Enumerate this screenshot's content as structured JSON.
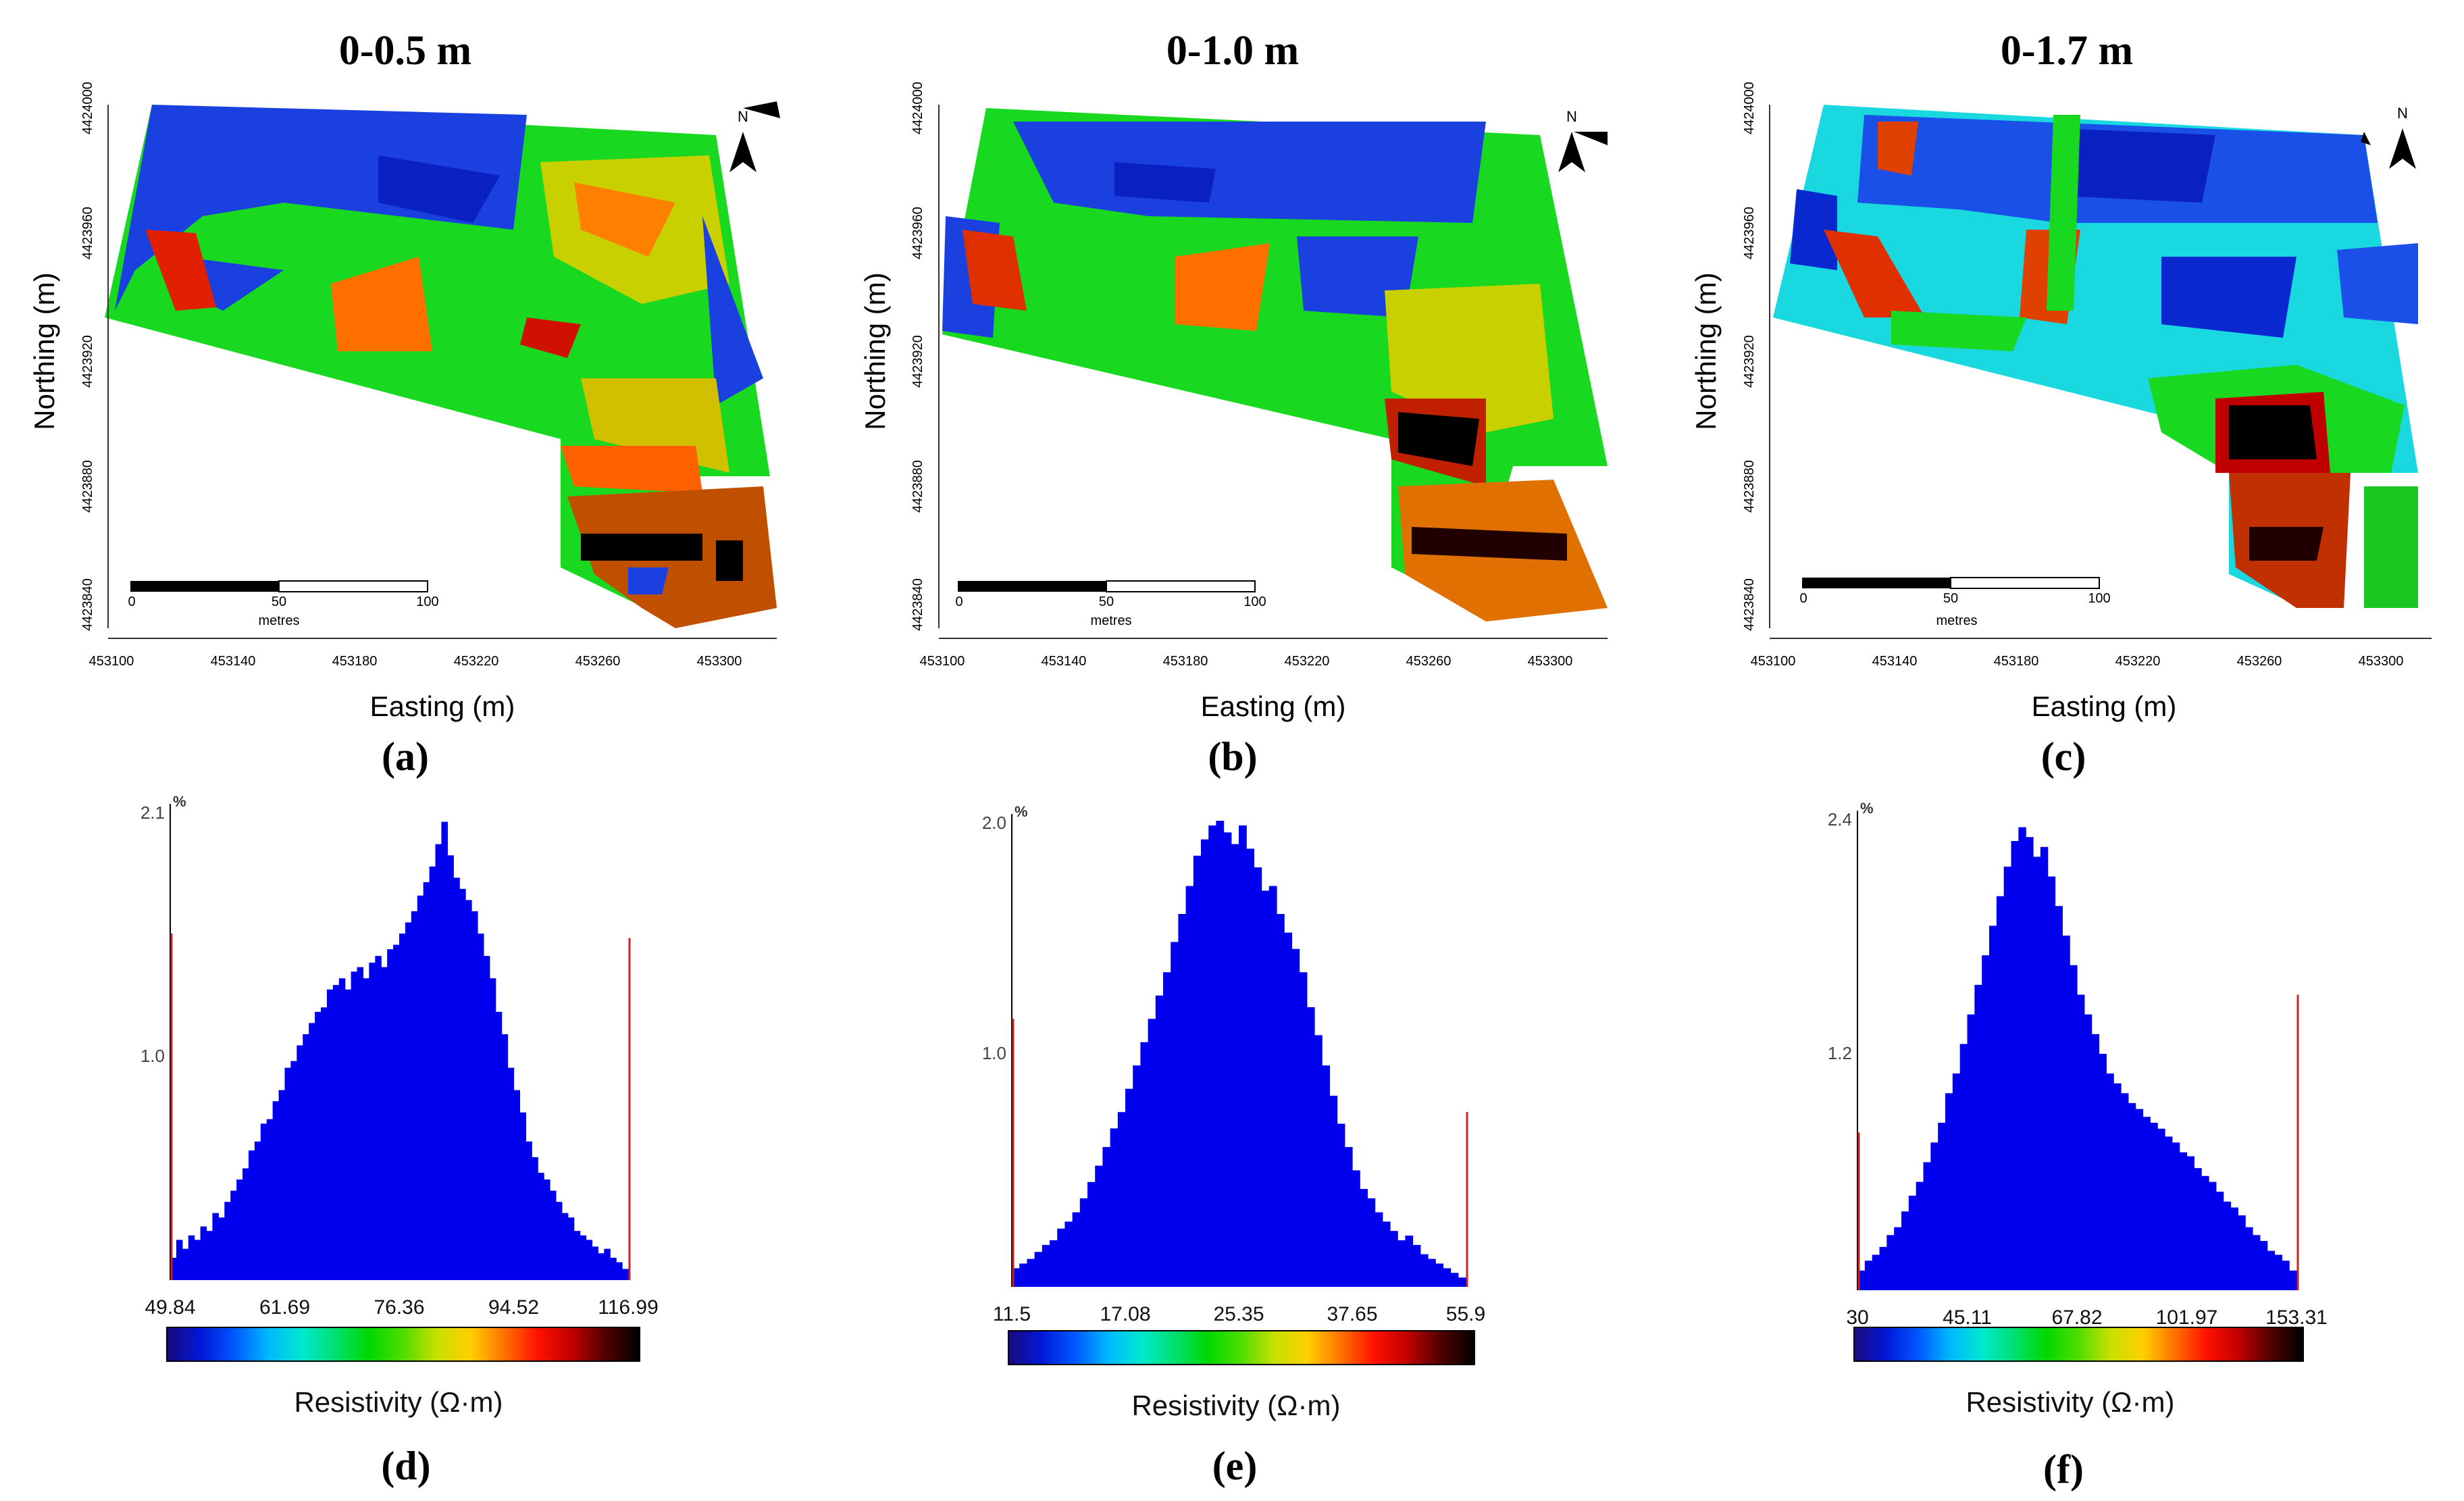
{
  "figure": {
    "background": "#ffffff",
    "colorbar_colors": [
      "#1a0a7a",
      "#0018d8",
      "#0058ff",
      "#00b8ff",
      "#00e8d0",
      "#00e070",
      "#00d800",
      "#50dd00",
      "#c8e000",
      "#ffd000",
      "#ff7000",
      "#ff1000",
      "#c00000",
      "#500000",
      "#000000"
    ]
  },
  "panels": [
    {
      "title": "0-0.5 m",
      "label": "(a)",
      "xlabel": "Easting (m)",
      "ylabel": "Northing (m)",
      "xticks": [
        "453100",
        "453140",
        "453180",
        "453220",
        "453260",
        "453300"
      ],
      "yticks": [
        "4424000",
        "4423960",
        "4423920",
        "4423880",
        "4423840"
      ],
      "scalebar": {
        "ticks": [
          "0",
          "50",
          "100"
        ],
        "unit": "metres"
      },
      "north": "N",
      "icon": "north-arrow-icon"
    },
    {
      "title": "0-1.0 m",
      "label": "(b)",
      "xlabel": "Easting (m)",
      "ylabel": "Northing (m)",
      "xticks": [
        "453100",
        "453140",
        "453180",
        "453220",
        "453260",
        "453300"
      ],
      "yticks": [
        "4424000",
        "4423960",
        "4423920",
        "4423880",
        "4423840"
      ],
      "scalebar": {
        "ticks": [
          "0",
          "50",
          "100"
        ],
        "unit": "metres"
      },
      "north": "N",
      "icon": "north-arrow-icon"
    },
    {
      "title": "0-1.7 m",
      "label": "(c)",
      "xlabel": "Easting (m)",
      "ylabel": "Northing (m)",
      "xticks": [
        "453100",
        "453140",
        "453180",
        "453220",
        "453260",
        "453300"
      ],
      "yticks": [
        "4424000",
        "4423960",
        "4423920",
        "4423880",
        "4423840"
      ],
      "scalebar": {
        "ticks": [
          "0",
          "50",
          "100"
        ],
        "unit": "metres"
      },
      "north": "N",
      "icon": "north-arrow-icon"
    }
  ],
  "chart_data": [
    {
      "type": "bar",
      "label": "(d)",
      "xlabel": "Resistivity (Ω·m)",
      "ylabel": "%",
      "xrange": [
        49.84,
        116.99
      ],
      "x_tick_labels": [
        "49.84",
        "61.69",
        "76.36",
        "94.52",
        "116.99"
      ],
      "y_tick_labels": [
        "1.0",
        "2.1"
      ],
      "ylim": [
        0,
        2.1
      ],
      "cutoff_markers": [
        1.55,
        1.53
      ],
      "values": [
        0.1,
        0.18,
        0.14,
        0.2,
        0.18,
        0.24,
        0.22,
        0.3,
        0.28,
        0.35,
        0.4,
        0.45,
        0.5,
        0.58,
        0.62,
        0.7,
        0.72,
        0.8,
        0.85,
        0.95,
        0.98,
        1.05,
        1.1,
        1.15,
        1.2,
        1.22,
        1.3,
        1.32,
        1.35,
        1.3,
        1.38,
        1.4,
        1.35,
        1.42,
        1.45,
        1.4,
        1.48,
        1.5,
        1.55,
        1.6,
        1.65,
        1.72,
        1.78,
        1.85,
        1.95,
        2.05,
        1.9,
        1.8,
        1.75,
        1.7,
        1.65,
        1.55,
        1.45,
        1.35,
        1.2,
        1.1,
        0.95,
        0.85,
        0.75,
        0.62,
        0.55,
        0.48,
        0.45,
        0.4,
        0.35,
        0.3,
        0.28,
        0.22,
        0.2,
        0.18,
        0.15,
        0.12,
        0.14,
        0.1,
        0.08,
        0.05
      ]
    },
    {
      "type": "bar",
      "label": "(e)",
      "xlabel": "Resistivity (Ω·m)",
      "ylabel": "%",
      "xrange": [
        11.5,
        55.9
      ],
      "x_tick_labels": [
        "11.5",
        "17.08",
        "25.35",
        "37.65",
        "55.9"
      ],
      "y_tick_labels": [
        "1.0",
        "2.0"
      ],
      "ylim": [
        0,
        2.0
      ],
      "cutoff_markers": [
        1.15,
        0.75
      ],
      "values": [
        0.08,
        0.1,
        0.12,
        0.15,
        0.18,
        0.2,
        0.25,
        0.28,
        0.32,
        0.38,
        0.45,
        0.52,
        0.6,
        0.68,
        0.75,
        0.85,
        0.95,
        1.05,
        1.15,
        1.25,
        1.35,
        1.48,
        1.6,
        1.72,
        1.85,
        1.92,
        1.98,
        2.0,
        1.95,
        1.9,
        1.98,
        1.88,
        1.8,
        1.7,
        1.72,
        1.6,
        1.52,
        1.45,
        1.35,
        1.2,
        1.08,
        0.95,
        0.82,
        0.7,
        0.6,
        0.5,
        0.42,
        0.38,
        0.32,
        0.28,
        0.24,
        0.2,
        0.22,
        0.18,
        0.14,
        0.12,
        0.1,
        0.08,
        0.06,
        0.04
      ]
    },
    {
      "type": "bar",
      "label": "(f)",
      "xlabel": "Resistivity (Ω·m)",
      "ylabel": "%",
      "xrange": [
        30,
        153.31
      ],
      "x_tick_labels": [
        "30",
        "45.11",
        "67.82",
        "101.97",
        "153.31"
      ],
      "y_tick_labels": [
        "1.2",
        "2.4"
      ],
      "ylim": [
        0,
        2.4
      ],
      "cutoff_markers": [
        0.8,
        1.5
      ],
      "values": [
        0.1,
        0.15,
        0.18,
        0.22,
        0.28,
        0.32,
        0.4,
        0.48,
        0.55,
        0.65,
        0.75,
        0.85,
        1.0,
        1.1,
        1.25,
        1.4,
        1.55,
        1.7,
        1.85,
        2.0,
        2.15,
        2.28,
        2.35,
        2.3,
        2.2,
        2.25,
        2.1,
        1.95,
        1.8,
        1.65,
        1.5,
        1.4,
        1.3,
        1.2,
        1.1,
        1.05,
        1.0,
        0.95,
        0.92,
        0.88,
        0.85,
        0.82,
        0.78,
        0.75,
        0.7,
        0.68,
        0.62,
        0.58,
        0.55,
        0.5,
        0.45,
        0.42,
        0.38,
        0.32,
        0.28,
        0.25,
        0.2,
        0.18,
        0.15,
        0.1
      ]
    }
  ]
}
